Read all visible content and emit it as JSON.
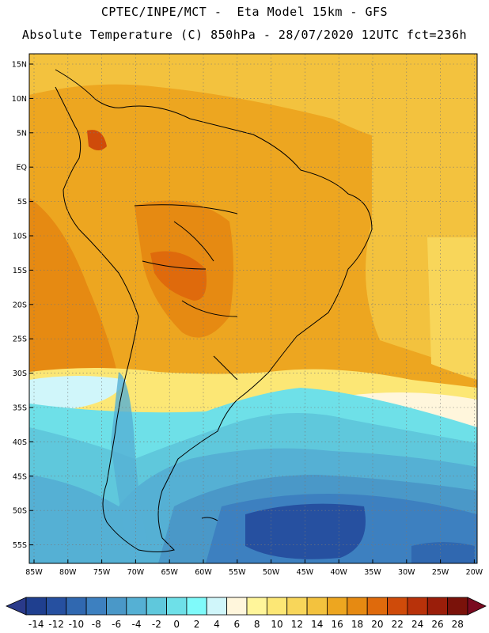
{
  "header": {
    "title_line1": "CPTEC/INPE/MCT -  Eta Model 15km - GFS",
    "title_line2": "Absolute Temperature (C) 850hPa - 28/07/2020 12UTC fct=236h"
  },
  "map": {
    "lat_labels": [
      "15N",
      "10N",
      "5N",
      "EQ",
      "5S",
      "10S",
      "15S",
      "20S",
      "25S",
      "30S",
      "35S",
      "40S",
      "45S",
      "50S",
      "55S"
    ],
    "lon_labels": [
      "85W",
      "80W",
      "75W",
      "70W",
      "65W",
      "60W",
      "55W",
      "50W",
      "45W",
      "40W",
      "35W",
      "30W",
      "25W",
      "20W"
    ],
    "grid": "dotted"
  },
  "colorbar": {
    "labels": [
      "-14",
      "-12",
      "-10",
      "-8",
      "-6",
      "-4",
      "-2",
      "0",
      "2",
      "4",
      "6",
      "8",
      "10",
      "12",
      "14",
      "16",
      "18",
      "20",
      "22",
      "24",
      "26",
      "28"
    ],
    "colors": [
      "#1f3f8f",
      "#2650a0",
      "#3068b0",
      "#3d80c0",
      "#4a98c8",
      "#55b0d4",
      "#5fc8dc",
      "#6ee0e8",
      "#7ffafa",
      "#d0f6fa",
      "#fff6dc",
      "#fff59a",
      "#fce775",
      "#f8d65a",
      "#f3c23e",
      "#eda620",
      "#e68a12",
      "#df6a0c",
      "#cf4b0a",
      "#b8320a",
      "#9a1e0a",
      "#7a120a"
    ],
    "over_color": "#7a0a20",
    "under_color": "#2a3a8a"
  }
}
